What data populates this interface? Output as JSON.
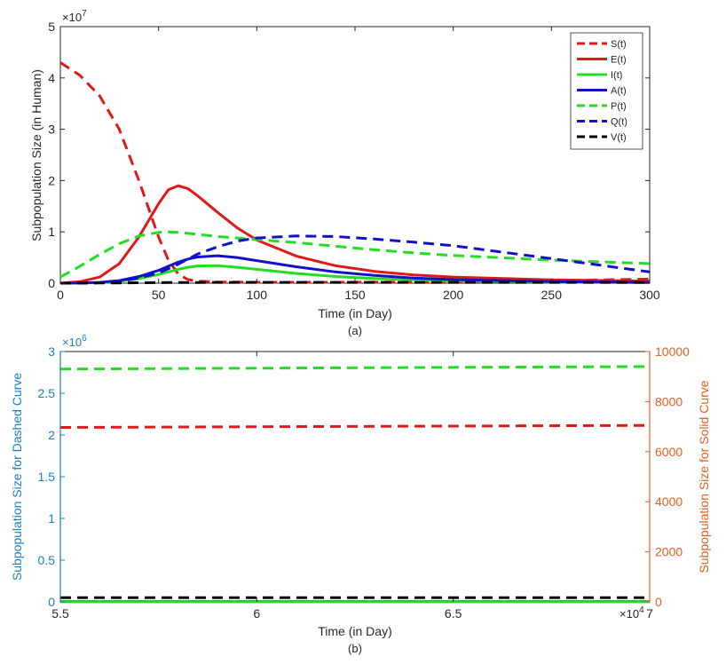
{
  "figure": {
    "panel_a_caption": "(a)",
    "panel_b_caption": "(b)"
  },
  "chart_data": [
    {
      "type": "line",
      "panel": "a",
      "xlabel": "Time (in Day)",
      "ylabel": "Subpopulation Size (in Human)",
      "xlim": [
        0,
        300
      ],
      "ylim": [
        0,
        50000000
      ],
      "x_ticks": [
        0,
        50,
        100,
        150,
        200,
        250,
        300
      ],
      "y_ticks": [
        0,
        1,
        2,
        3,
        4,
        5
      ],
      "y_exponent": "×10^7",
      "grid": false,
      "legend_position": "top-right",
      "x": [
        0,
        10,
        20,
        30,
        40,
        50,
        55,
        60,
        65,
        70,
        80,
        90,
        100,
        120,
        140,
        160,
        180,
        200,
        250,
        300
      ],
      "series": [
        {
          "name": "S(t)",
          "color": "#e01818",
          "dash": true,
          "values": [
            43000000,
            40500000,
            36500000,
            30000000,
            20000000,
            9000000,
            4500000,
            1800000,
            700000,
            400000,
            250000,
            200000,
            180000,
            170000,
            180000,
            200000,
            250000,
            300000,
            500000,
            800000
          ]
        },
        {
          "name": "E(t)",
          "color": "#e01818",
          "dash": false,
          "values": [
            0,
            300000,
            1200000,
            3800000,
            9000000,
            15500000,
            18200000,
            19000000,
            18400000,
            17000000,
            13800000,
            10800000,
            8400000,
            5300000,
            3400000,
            2300000,
            1600000,
            1200000,
            650000,
            400000
          ]
        },
        {
          "name": "I(t)",
          "color": "#22dd22",
          "dash": false,
          "values": [
            0,
            20000,
            100000,
            350000,
            900000,
            1700000,
            2200000,
            2700000,
            3100000,
            3350000,
            3400000,
            3100000,
            2700000,
            1900000,
            1300000,
            900000,
            650000,
            450000,
            200000,
            100000
          ]
        },
        {
          "name": "A(t)",
          "color": "#1111cc",
          "dash": false,
          "values": [
            0,
            30000,
            150000,
            500000,
            1300000,
            2500000,
            3300000,
            4100000,
            4700000,
            5100000,
            5350000,
            5000000,
            4400000,
            3200000,
            2200000,
            1500000,
            1000000,
            700000,
            300000,
            150000
          ]
        },
        {
          "name": "P(t)",
          "color": "#22dd22",
          "dash": true,
          "values": [
            1200000,
            3300000,
            5600000,
            7700000,
            9200000,
            9900000,
            10000000,
            9900000,
            9700000,
            9500000,
            9100000,
            8800000,
            8500000,
            7900000,
            7200000,
            6500000,
            5900000,
            5400000,
            4500000,
            3800000
          ]
        },
        {
          "name": "Q(t)",
          "color": "#1111cc",
          "dash": true,
          "values": [
            0,
            20000,
            100000,
            350000,
            1000000,
            2000000,
            2800000,
            3700000,
            4700000,
            5700000,
            7100000,
            8200000,
            8800000,
            9200000,
            9100000,
            8600000,
            8000000,
            7300000,
            4800000,
            2200000
          ]
        },
        {
          "name": "V(t)",
          "color": "#000000",
          "dash": true,
          "values": [
            0,
            10000,
            30000,
            60000,
            90000,
            110000,
            120000,
            130000,
            140000,
            145000,
            150000,
            150000,
            150000,
            150000,
            150000,
            150000,
            150000,
            150000,
            150000,
            150000
          ]
        }
      ]
    },
    {
      "type": "line",
      "panel": "b",
      "xlabel": "Time (in Day)",
      "ylabel_left": "Subpopulation Size for Dashed Curve",
      "ylabel_right": "Subpopulation Size for Solid Curve",
      "xlim": [
        55000,
        70000
      ],
      "ylim_left": [
        0,
        3000000
      ],
      "ylim_right": [
        0,
        10000
      ],
      "x_ticks": [
        5.5,
        6,
        6.5,
        7
      ],
      "x_exponent": "×10^4",
      "y_left_ticks": [
        0,
        0.5,
        1,
        1.5,
        2,
        2.5,
        3
      ],
      "y_left_exponent": "×10^6",
      "y_right_ticks": [
        0,
        2000,
        4000,
        6000,
        8000,
        10000
      ],
      "left_axis_color": "#1a7fbf",
      "right_axis_color": "#e06020",
      "grid": false,
      "x": [
        55000,
        70000
      ],
      "series": [
        {
          "color": "#22dd22",
          "dash": true,
          "axis": "left",
          "values": [
            2790000,
            2820000
          ]
        },
        {
          "color": "#e01818",
          "dash": true,
          "axis": "left",
          "values": [
            2090000,
            2115000
          ]
        },
        {
          "color": "#000000",
          "dash": true,
          "axis": "left",
          "values": [
            50000,
            50000
          ]
        },
        {
          "color": "#1111cc",
          "dash": false,
          "axis": "right",
          "values": [
            15,
            15
          ]
        },
        {
          "color": "#22dd22",
          "dash": false,
          "axis": "right",
          "values": [
            10,
            10
          ]
        }
      ]
    }
  ]
}
